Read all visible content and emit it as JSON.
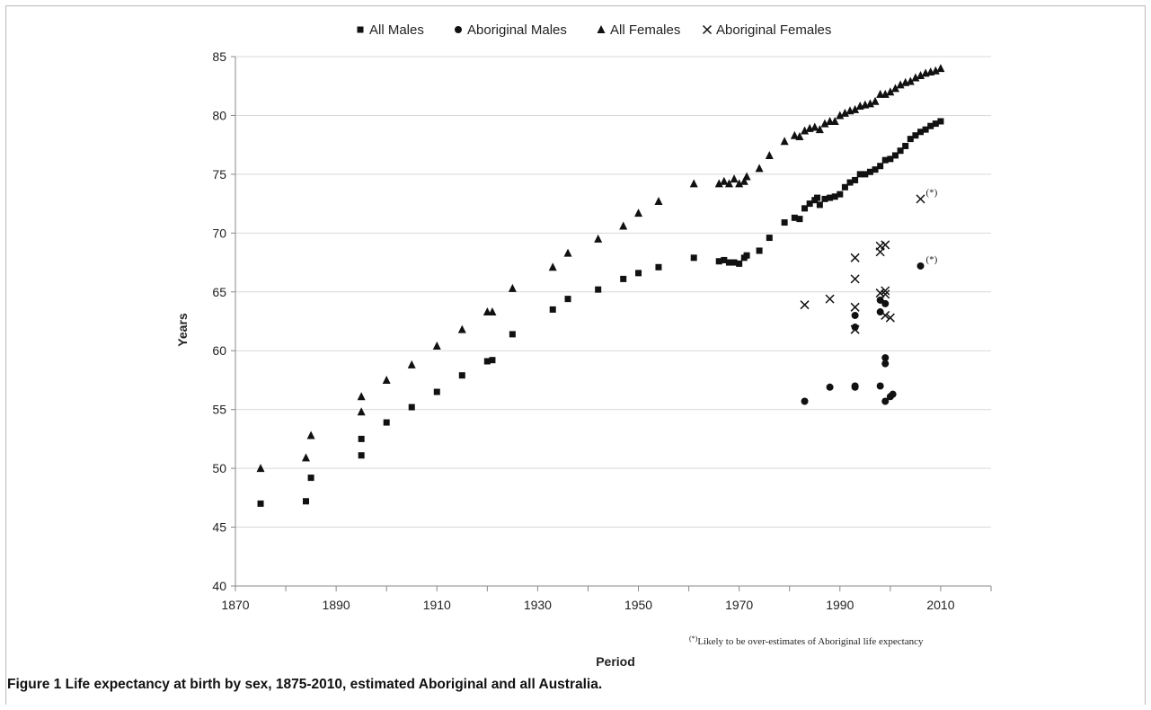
{
  "caption": {
    "label": "Figure 1",
    "text": "Life expectancy at birth by sex, 1875-2010, estimated Aboriginal and all Australia."
  },
  "chart_data": {
    "type": "scatter",
    "xlabel": "Period",
    "ylabel": "Years",
    "xlim": [
      1870,
      2020
    ],
    "ylim": [
      40,
      85
    ],
    "xticks": [
      1870,
      1890,
      1910,
      1930,
      1950,
      1970,
      1990,
      2010
    ],
    "yticks": [
      40,
      45,
      50,
      55,
      60,
      65,
      70,
      75,
      80,
      85
    ],
    "grid": "horizontal",
    "legend_position": "top",
    "footnote": {
      "mark": "(*)",
      "text": "Likely to be over-estimates of Aboriginal life expectancy"
    },
    "series": [
      {
        "name": "All Males",
        "marker": "square",
        "points": [
          [
            1875,
            47.0
          ],
          [
            1884,
            47.2
          ],
          [
            1885,
            49.2
          ],
          [
            1895,
            51.1
          ],
          [
            1895,
            52.5
          ],
          [
            1900,
            53.9
          ],
          [
            1905,
            55.2
          ],
          [
            1910,
            56.5
          ],
          [
            1915,
            57.9
          ],
          [
            1920,
            59.1
          ],
          [
            1921,
            59.2
          ],
          [
            1925,
            61.4
          ],
          [
            1933,
            63.5
          ],
          [
            1936,
            64.4
          ],
          [
            1942,
            65.2
          ],
          [
            1947,
            66.1
          ],
          [
            1950,
            66.6
          ],
          [
            1954,
            67.1
          ],
          [
            1961,
            67.9
          ],
          [
            1966,
            67.6
          ],
          [
            1967,
            67.7
          ],
          [
            1968,
            67.5
          ],
          [
            1969,
            67.5
          ],
          [
            1970,
            67.4
          ],
          [
            1971,
            67.9
          ],
          [
            1971.5,
            68.1
          ],
          [
            1974,
            68.5
          ],
          [
            1976,
            69.6
          ],
          [
            1979,
            70.9
          ],
          [
            1981,
            71.3
          ],
          [
            1982,
            71.2
          ],
          [
            1983,
            72.1
          ],
          [
            1984,
            72.5
          ],
          [
            1985,
            72.8
          ],
          [
            1985.5,
            73.0
          ],
          [
            1986,
            72.4
          ],
          [
            1987,
            72.9
          ],
          [
            1988,
            73.0
          ],
          [
            1989,
            73.1
          ],
          [
            1990,
            73.3
          ],
          [
            1991,
            73.9
          ],
          [
            1992,
            74.3
          ],
          [
            1993,
            74.5
          ],
          [
            1994,
            75.0
          ],
          [
            1995,
            75.0
          ],
          [
            1996,
            75.2
          ],
          [
            1997,
            75.4
          ],
          [
            1998,
            75.7
          ],
          [
            1999,
            76.2
          ],
          [
            2000,
            76.3
          ],
          [
            2001,
            76.6
          ],
          [
            2002,
            77.0
          ],
          [
            2003,
            77.4
          ],
          [
            2004,
            78.0
          ],
          [
            2005,
            78.3
          ],
          [
            2006,
            78.6
          ],
          [
            2007,
            78.8
          ],
          [
            2008,
            79.1
          ],
          [
            2009,
            79.3
          ],
          [
            2010,
            79.5
          ]
        ]
      },
      {
        "name": "Aboriginal Males",
        "marker": "circle",
        "points": [
          [
            1983,
            55.7
          ],
          [
            1988,
            56.9
          ],
          [
            1993,
            56.9
          ],
          [
            1993,
            57.0
          ],
          [
            1993,
            62.0
          ],
          [
            1993,
            63.0
          ],
          [
            1998,
            57.0
          ],
          [
            1998,
            63.3
          ],
          [
            1998,
            64.3
          ],
          [
            1999,
            55.7
          ],
          [
            1999,
            59.4
          ],
          [
            1999,
            58.9
          ],
          [
            1999,
            64.0
          ],
          [
            2000,
            56.1
          ],
          [
            2000.5,
            56.3
          ],
          [
            2006,
            67.2
          ]
        ],
        "flagged": [
          [
            2006,
            67.2
          ]
        ]
      },
      {
        "name": "All Females",
        "marker": "triangle",
        "points": [
          [
            1875,
            50.0
          ],
          [
            1884,
            50.9
          ],
          [
            1885,
            52.8
          ],
          [
            1895,
            54.8
          ],
          [
            1895,
            56.1
          ],
          [
            1900,
            57.5
          ],
          [
            1905,
            58.8
          ],
          [
            1910,
            60.4
          ],
          [
            1915,
            61.8
          ],
          [
            1920,
            63.3
          ],
          [
            1921,
            63.3
          ],
          [
            1925,
            65.3
          ],
          [
            1933,
            67.1
          ],
          [
            1936,
            68.3
          ],
          [
            1942,
            69.5
          ],
          [
            1947,
            70.6
          ],
          [
            1950,
            71.7
          ],
          [
            1954,
            72.7
          ],
          [
            1961,
            74.2
          ],
          [
            1966,
            74.2
          ],
          [
            1967,
            74.4
          ],
          [
            1968,
            74.2
          ],
          [
            1969,
            74.6
          ],
          [
            1970,
            74.2
          ],
          [
            1971,
            74.4
          ],
          [
            1971.5,
            74.8
          ],
          [
            1974,
            75.5
          ],
          [
            1976,
            76.6
          ],
          [
            1979,
            77.8
          ],
          [
            1981,
            78.3
          ],
          [
            1982,
            78.2
          ],
          [
            1983,
            78.7
          ],
          [
            1984,
            78.9
          ],
          [
            1985,
            79.0
          ],
          [
            1986,
            78.8
          ],
          [
            1987,
            79.3
          ],
          [
            1988,
            79.5
          ],
          [
            1989,
            79.5
          ],
          [
            1990,
            80.0
          ],
          [
            1991,
            80.2
          ],
          [
            1992,
            80.4
          ],
          [
            1993,
            80.5
          ],
          [
            1994,
            80.8
          ],
          [
            1995,
            80.9
          ],
          [
            1996,
            81.0
          ],
          [
            1997,
            81.2
          ],
          [
            1998,
            81.8
          ],
          [
            1999,
            81.8
          ],
          [
            2000,
            82.0
          ],
          [
            2001,
            82.3
          ],
          [
            2002,
            82.6
          ],
          [
            2003,
            82.8
          ],
          [
            2004,
            82.9
          ],
          [
            2005,
            83.2
          ],
          [
            2006,
            83.4
          ],
          [
            2007,
            83.6
          ],
          [
            2008,
            83.7
          ],
          [
            2009,
            83.8
          ],
          [
            2010,
            84.0
          ]
        ]
      },
      {
        "name": "Aboriginal Females",
        "marker": "x",
        "points": [
          [
            1983,
            63.9
          ],
          [
            1988,
            64.4
          ],
          [
            1993,
            61.8
          ],
          [
            1993,
            63.7
          ],
          [
            1993,
            66.1
          ],
          [
            1993,
            67.9
          ],
          [
            1998,
            64.9
          ],
          [
            1998,
            68.4
          ],
          [
            1998,
            68.9
          ],
          [
            1999,
            63.0
          ],
          [
            1999,
            64.8
          ],
          [
            1999,
            65.1
          ],
          [
            1999,
            69.0
          ],
          [
            2000,
            62.8
          ],
          [
            2006,
            72.9
          ]
        ],
        "flagged": [
          [
            2006,
            72.9
          ]
        ]
      }
    ]
  }
}
